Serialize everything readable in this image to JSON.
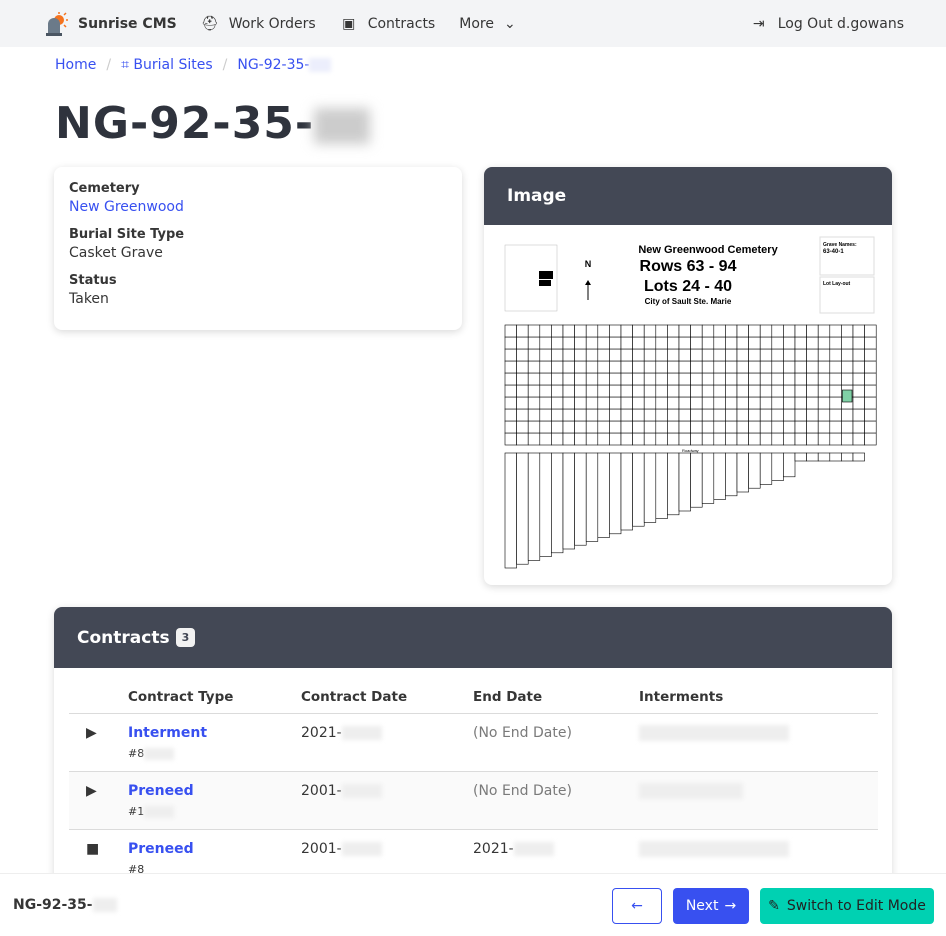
{
  "nav": {
    "brand": "Sunrise CMS",
    "work_orders": "Work Orders",
    "contracts": "Contracts",
    "more": "More",
    "logout": "Log Out d.gowans"
  },
  "breadcrumb": {
    "home": "Home",
    "burial_sites": "Burial Sites",
    "current": "NG-92-35-"
  },
  "title": "NG-92-35-",
  "details": {
    "cemetery_label": "Cemetery",
    "cemetery": "New Greenwood",
    "type_label": "Burial Site Type",
    "type": "Casket Grave",
    "status_label": "Status",
    "status": "Taken"
  },
  "image": {
    "heading": "Image",
    "map_title": "New Greenwood Cemetery",
    "map_rows": "Rows 63 - 94",
    "map_lots": "Lots 24 - 40",
    "map_city": "City of Sault Ste. Marie",
    "north": "N",
    "grave_names": "Grave Names:",
    "grave_example": "63-40-1",
    "lot_layout": "Lot Lay-out",
    "roadway": "Roadway"
  },
  "contracts": {
    "heading": "Contracts",
    "count": "3",
    "headers": [
      "Contract Type",
      "Contract Date",
      "End Date",
      "Interments"
    ],
    "rows": [
      {
        "type": "Interment",
        "number": "#8",
        "date": "2021-",
        "end": "(No End Date)",
        "icon": "play-icon"
      },
      {
        "type": "Preneed",
        "number": "#1",
        "date": "2001-",
        "end": "(No End Date)",
        "icon": "play-icon"
      },
      {
        "type": "Preneed",
        "number": "#8",
        "date": "2001-",
        "end": "2021-",
        "icon": "stop-icon"
      }
    ]
  },
  "footer": {
    "id": "NG-92-35-",
    "next": "Next",
    "edit": "Switch to Edit Mode"
  },
  "colors": {
    "primary": "#3850f0",
    "success": "#00d1b2",
    "header": "#434855"
  }
}
